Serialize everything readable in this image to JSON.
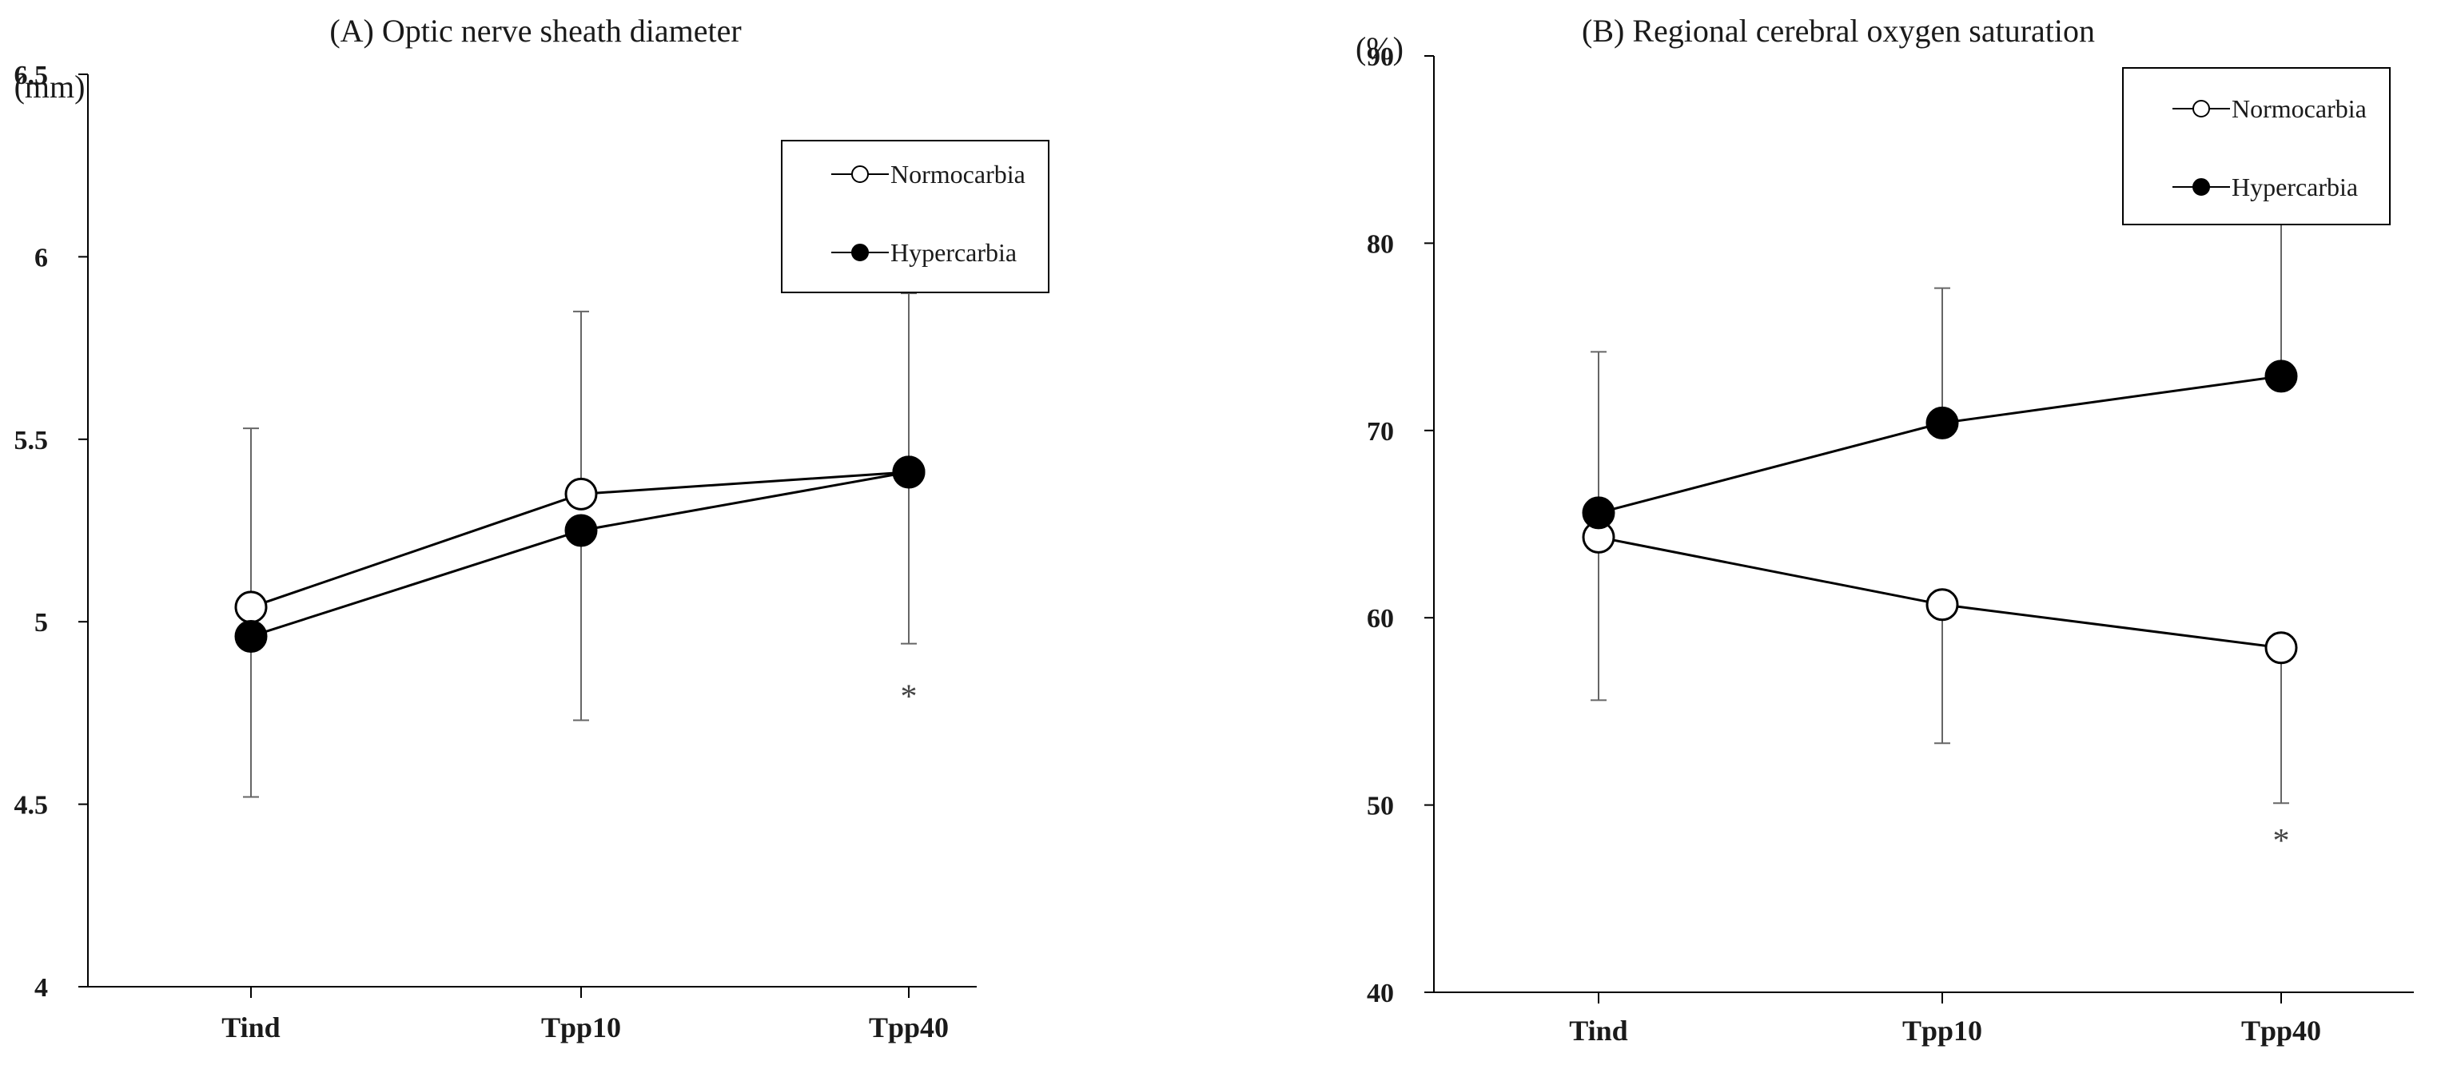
{
  "chart_data": [
    {
      "panel": "A",
      "type": "line",
      "title": "(A) Optic nerve sheath diameter",
      "ylabel": "(mm)",
      "ylim": [
        4,
        6.5
      ],
      "yticks": [
        4,
        4.5,
        5,
        5.5,
        6,
        6.5
      ],
      "ytick_labels": [
        "4",
        "4.5",
        "5",
        "5.5",
        "6",
        "6.5"
      ],
      "categories": [
        "Tind",
        "Tpp10",
        "Tpp40"
      ],
      "legend_position": "top-right",
      "grid": false,
      "series": [
        {
          "name": "Normocarbia",
          "marker": "open-circle",
          "values": [
            5.04,
            5.35,
            5.41
          ],
          "error_bar": "up",
          "error_ends": [
            5.53,
            5.85,
            5.9
          ]
        },
        {
          "name": "Hypercarbia",
          "marker": "filled-circle",
          "values": [
            4.96,
            5.25,
            5.41
          ],
          "error_bar": "down",
          "error_ends": [
            4.52,
            4.73,
            4.94
          ]
        }
      ],
      "annotations": [
        {
          "text": "*",
          "category": "Tpp40",
          "value": 5.97
        },
        {
          "text": "*",
          "category": "Tpp40",
          "value": 4.8
        }
      ]
    },
    {
      "panel": "B",
      "type": "line",
      "title": "(B) Regional cerebral oxygen saturation",
      "ylabel": "(%)",
      "ylim": [
        40,
        90
      ],
      "yticks": [
        40,
        50,
        60,
        70,
        80,
        90
      ],
      "ytick_labels": [
        "40",
        "50",
        "60",
        "70",
        "80",
        "90"
      ],
      "categories": [
        "Tind",
        "Tpp10",
        "Tpp40"
      ],
      "legend_position": "top-right",
      "grid": false,
      "series": [
        {
          "name": "Normocarbia",
          "marker": "open-circle",
          "values": [
            64.3,
            60.7,
            58.4
          ],
          "error_bar": "down",
          "error_ends": [
            55.6,
            53.3,
            50.1
          ]
        },
        {
          "name": "Hypercarbia",
          "marker": "filled-circle",
          "values": [
            65.6,
            70.4,
            72.9
          ],
          "error_bar": "up",
          "error_ends": [
            74.2,
            77.6,
            81.1
          ]
        }
      ],
      "annotations": [
        {
          "text": "*",
          "category": "Tpp40",
          "value": 82.2
        },
        {
          "text": "*",
          "category": "Tpp40",
          "value": 48.2
        }
      ]
    }
  ]
}
